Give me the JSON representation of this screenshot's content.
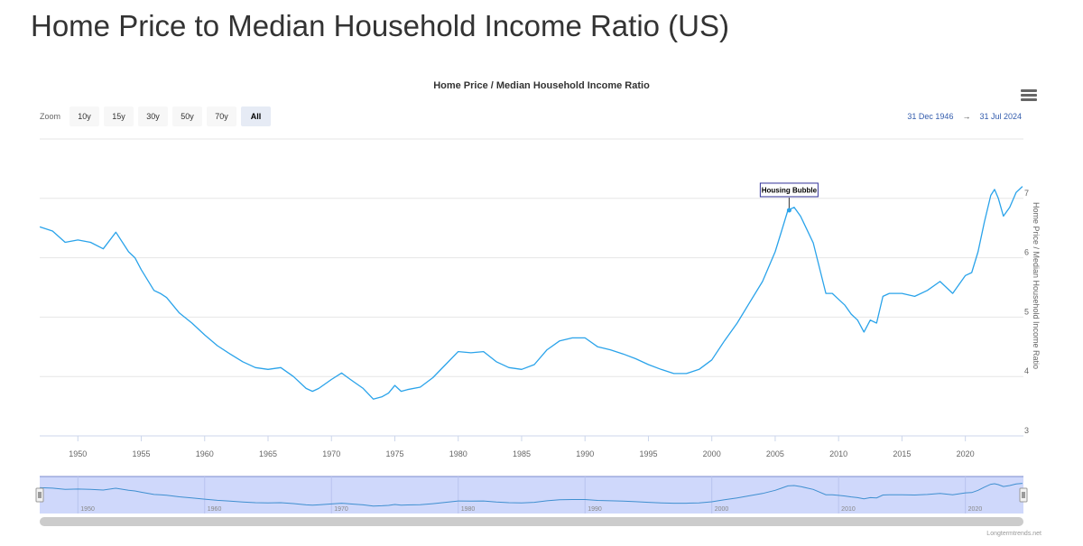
{
  "page": {
    "title": "Home Price to Median Household Income Ratio (US)"
  },
  "toolbar": {
    "zoom_label": "Zoom",
    "zoom_buttons": [
      "10y",
      "15y",
      "30y",
      "50y",
      "70y",
      "All"
    ],
    "active_zoom": "All",
    "range_from": "31 Dec 1946",
    "range_arrow": "→",
    "range_to": "31 Jul 2024",
    "menu_icon": "hamburger-menu-icon"
  },
  "credit": "Longtermtrends.net",
  "colors": {
    "line": "#2aa3ea",
    "navigator_fill": "#ccd6fb",
    "navigator_border": "#7b8bcc",
    "grid": "#e6e6e6"
  },
  "chart_data": {
    "type": "line",
    "title": "Home Price / Median Household Income Ratio",
    "ylabel": "Home Price / Median Household Income Ratio",
    "xlabel": "",
    "xlim": [
      1946.99,
      2024.58
    ],
    "ylim": [
      3,
      8
    ],
    "y_ticks": [
      3,
      4,
      5,
      6,
      7
    ],
    "x_ticks": [
      1950,
      1955,
      1960,
      1965,
      1970,
      1975,
      1980,
      1985,
      1990,
      1995,
      2000,
      2005,
      2010,
      2015,
      2020
    ],
    "navigator_x_ticks": [
      1950,
      1960,
      1970,
      1980,
      1990,
      2000,
      2010,
      2020
    ],
    "annotation": {
      "label": "Housing Bubble",
      "x": 2006.1,
      "y": 6.8
    },
    "series": [
      {
        "x": [
          1947.0,
          1948.0,
          1949.0,
          1950.0,
          1951.0,
          1952.0,
          1953.0,
          1954.0,
          1954.5,
          1955.0,
          1956.0,
          1956.5,
          1957.0,
          1958.0,
          1959.0,
          1960.0,
          1961.0,
          1962.0,
          1963.0,
          1964.0,
          1965.0,
          1966.0,
          1967.0,
          1968.0,
          1968.5,
          1969.0,
          1970.0,
          1970.8,
          1971.5,
          1972.5,
          1973.3,
          1974.0,
          1974.5,
          1975.0,
          1975.5,
          1976.0,
          1977.0,
          1978.0,
          1979.0,
          1980.0,
          1981.0,
          1982.0,
          1983.0,
          1984.0,
          1985.0,
          1986.0,
          1987.0,
          1988.0,
          1989.0,
          1990.0,
          1991.0,
          1992.0,
          1993.0,
          1994.0,
          1995.0,
          1996.0,
          1997.0,
          1998.0,
          1999.0,
          2000.0,
          2001.0,
          2002.0,
          2003.0,
          2004.0,
          2005.0,
          2005.5,
          2006.0,
          2006.5,
          2007.0,
          2008.0,
          2009.0,
          2009.5,
          2010.0,
          2010.5,
          2011.0,
          2011.5,
          2012.0,
          2012.5,
          2013.0,
          2013.5,
          2014.0,
          2015.0,
          2016.0,
          2017.0,
          2018.0,
          2019.0,
          2020.0,
          2020.5,
          2021.0,
          2021.5,
          2022.0,
          2022.3,
          2022.6,
          2023.0,
          2023.5,
          2024.0,
          2024.5
        ],
        "y": [
          6.52,
          6.45,
          6.26,
          6.3,
          6.26,
          6.15,
          6.43,
          6.1,
          6.0,
          5.8,
          5.45,
          5.4,
          5.33,
          5.07,
          4.9,
          4.7,
          4.52,
          4.38,
          4.25,
          4.15,
          4.12,
          4.15,
          4.0,
          3.8,
          3.75,
          3.8,
          3.95,
          4.06,
          3.95,
          3.8,
          3.62,
          3.66,
          3.72,
          3.85,
          3.75,
          3.78,
          3.82,
          3.98,
          4.2,
          4.42,
          4.4,
          4.42,
          4.25,
          4.15,
          4.12,
          4.2,
          4.45,
          4.6,
          4.65,
          4.65,
          4.5,
          4.45,
          4.38,
          4.3,
          4.2,
          4.12,
          4.05,
          4.05,
          4.12,
          4.28,
          4.6,
          4.9,
          5.25,
          5.6,
          6.1,
          6.45,
          6.8,
          6.85,
          6.7,
          6.25,
          5.4,
          5.4,
          5.3,
          5.2,
          5.05,
          4.95,
          4.75,
          4.95,
          4.9,
          5.35,
          5.4,
          5.4,
          5.35,
          5.45,
          5.6,
          5.4,
          5.7,
          5.75,
          6.1,
          6.6,
          7.05,
          7.15,
          7.0,
          6.7,
          6.85,
          7.1,
          7.2
        ]
      }
    ]
  }
}
